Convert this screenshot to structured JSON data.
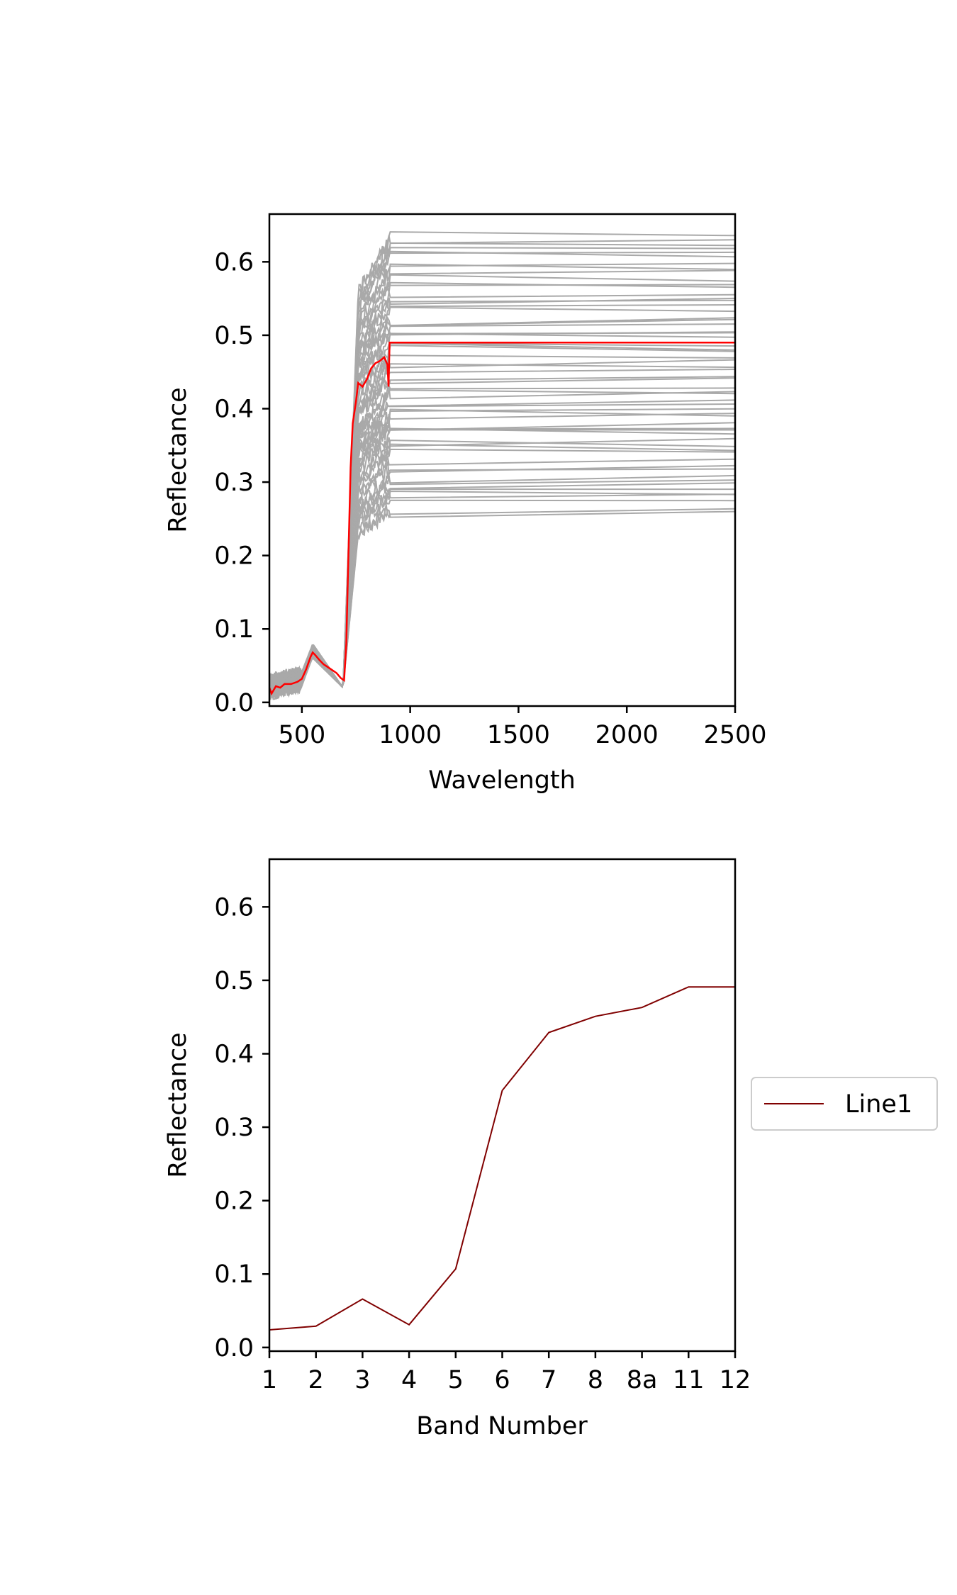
{
  "chart_data": [
    {
      "type": "line",
      "title": "",
      "xlabel": "Wavelength",
      "ylabel": "Reflectance",
      "xlim": [
        350,
        2500
      ],
      "ylim": [
        -0.005,
        0.665
      ],
      "xticks": [
        500,
        1000,
        1500,
        2000,
        2500
      ],
      "yticks": [
        0.0,
        0.1,
        0.2,
        0.3,
        0.4,
        0.5,
        0.6
      ],
      "ytick_labels": [
        "0.0",
        "0.1",
        "0.2",
        "0.3",
        "0.4",
        "0.5",
        "0.6"
      ],
      "grid": false,
      "legend": null,
      "colors": {
        "spectra": "#a9a9a9",
        "highlight": "#ff0000"
      },
      "highlight_series": {
        "x": [
          350,
          360,
          380,
          400,
          420,
          450,
          480,
          500,
          520,
          540,
          550,
          560,
          580,
          600,
          630,
          660,
          680,
          695,
          705,
          715,
          725,
          735,
          750,
          760,
          780,
          800,
          820,
          840,
          860,
          880,
          895,
          900,
          905,
          910,
          2500
        ],
        "y": [
          0.02,
          0.012,
          0.022,
          0.02,
          0.025,
          0.025,
          0.028,
          0.032,
          0.045,
          0.062,
          0.068,
          0.065,
          0.058,
          0.052,
          0.046,
          0.04,
          0.033,
          0.03,
          0.08,
          0.2,
          0.32,
          0.38,
          0.41,
          0.435,
          0.43,
          0.44,
          0.455,
          0.462,
          0.465,
          0.47,
          0.46,
          0.43,
          0.49,
          0.49,
          0.49
        ]
      },
      "background_spectra": {
        "count": 60,
        "plateau_min": 0.26,
        "plateau_max": 0.635,
        "visible_min": 0.0,
        "visible_peak_min": 0.06,
        "visible_peak_max": 0.08,
        "red_edge_nm": [
          690,
          760
        ],
        "plateau_start_nm": 910
      }
    },
    {
      "type": "line",
      "title": "",
      "xlabel": "Band Number",
      "ylabel": "Reflectance",
      "categories": [
        "1",
        "2",
        "3",
        "4",
        "5",
        "6",
        "7",
        "8",
        "8a",
        "11",
        "12"
      ],
      "ylim": [
        -0.005,
        0.665
      ],
      "yticks": [
        0.0,
        0.1,
        0.2,
        0.3,
        0.4,
        0.5,
        0.6
      ],
      "ytick_labels": [
        "0.0",
        "0.1",
        "0.2",
        "0.3",
        "0.4",
        "0.5",
        "0.6"
      ],
      "grid": false,
      "legend": "center-right outside",
      "series": [
        {
          "name": "Line1",
          "color": "#800000",
          "values": [
            0.024,
            0.029,
            0.066,
            0.031,
            0.107,
            0.35,
            0.429,
            0.451,
            0.463,
            0.491,
            0.491
          ]
        }
      ]
    }
  ]
}
